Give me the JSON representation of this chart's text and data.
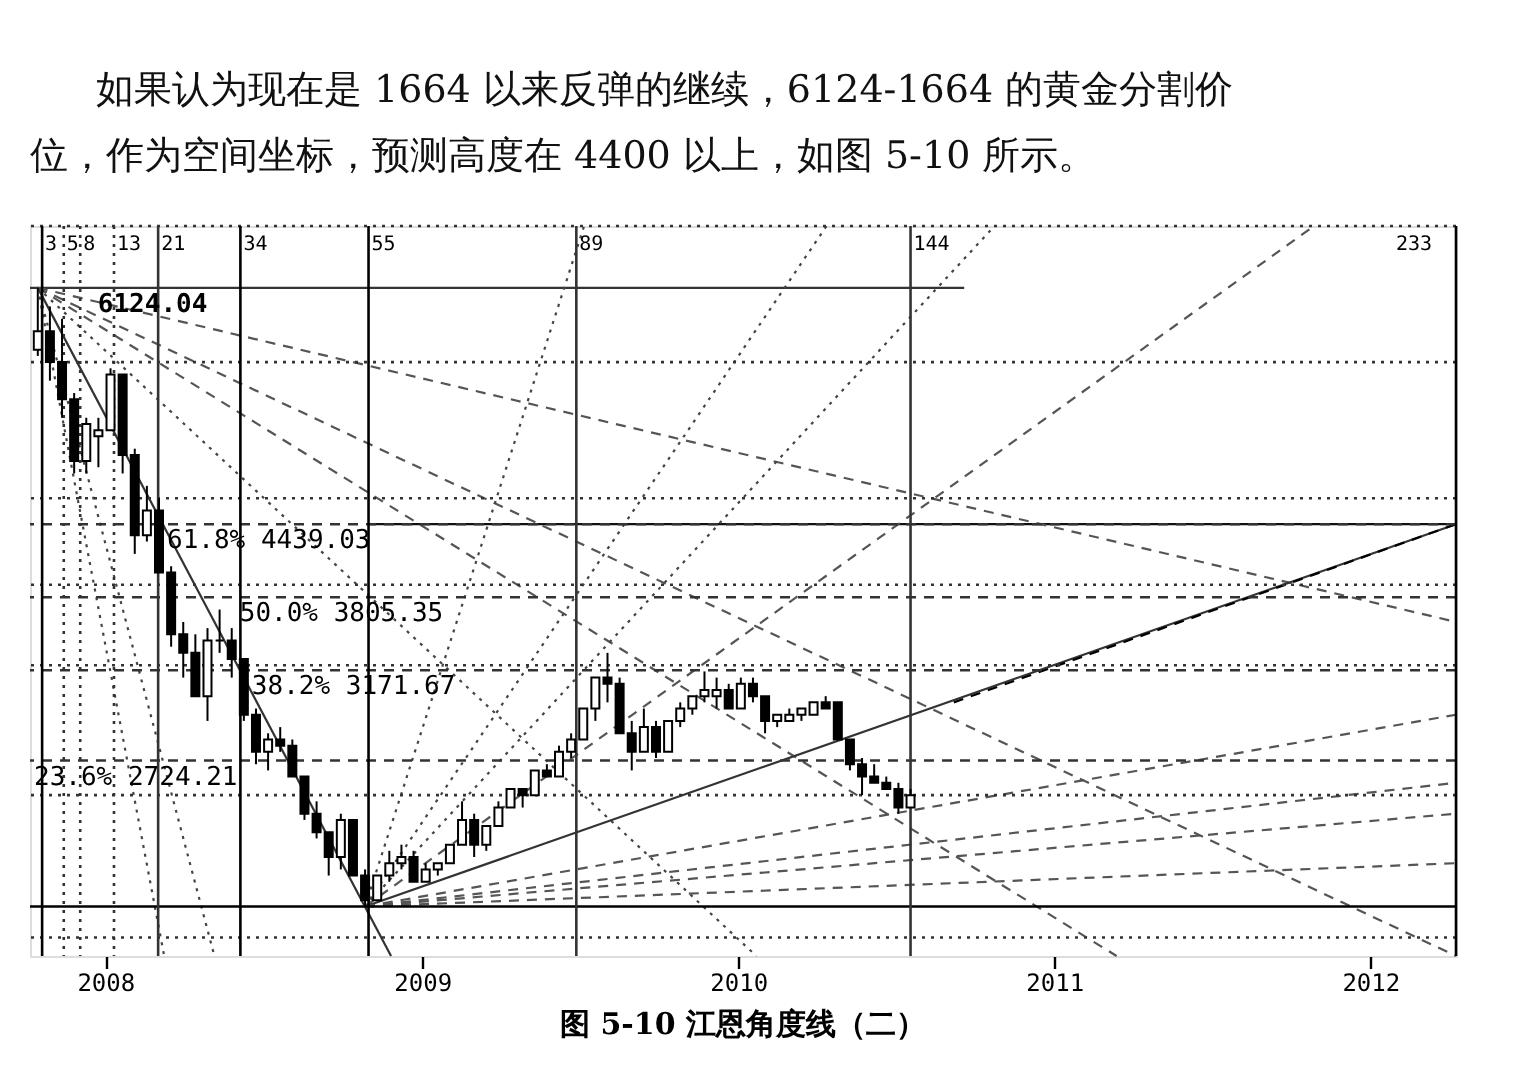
{
  "chart_data": {
    "type": "candlestick",
    "title": "图 5-10 江恩角度线（二）",
    "annotations": [
      "如果认为现在是 1664 以来反弹的继续，6124-1664 的黄金分割价",
      "位，作为空间坐标，预测高度在 4400 以上，如图 5-10 所示。",
      {
        "text": "6124.04",
        "x": "2007-10-15",
        "y": 100
      }
    ],
    "color": "#000000",
    "x": [
      "2007-10-15",
      "2007-10-29",
      "2007-11-12",
      "2007-11-26",
      "2007-12-10",
      "2007-12-24",
      "2008-01-07",
      "2008-01-21",
      "2008-02-04",
      "2008-02-18",
      "2008-03-03",
      "2008-03-17",
      "2008-03-31",
      "2008-04-14",
      "2008-04-28",
      "2008-05-12",
      "2008-05-26",
      "2008-06-09",
      "2008-06-23",
      "2008-07-07",
      "2008-07-21",
      "2008-08-04",
      "2008-08-18",
      "2008-09-01",
      "2008-09-15",
      "2008-09-29",
      "2008-10-13",
      "2008-10-27",
      "2008-11-10",
      "2008-11-24",
      "2008-12-08",
      "2008-12-22",
      "2009-01-05",
      "2009-01-19",
      "2009-02-02",
      "2009-02-16",
      "2009-03-02",
      "2009-03-16",
      "2009-03-30",
      "2009-04-13",
      "2009-04-27",
      "2009-05-11",
      "2009-05-25",
      "2009-06-08",
      "2009-06-22",
      "2009-07-06",
      "2009-07-20",
      "2009-08-03",
      "2009-08-17",
      "2009-08-31",
      "2009-09-14",
      "2009-09-28",
      "2009-10-12",
      "2009-10-26",
      "2009-11-09",
      "2009-11-23",
      "2009-12-07",
      "2009-12-21",
      "2010-01-04",
      "2010-01-18",
      "2010-02-01",
      "2010-02-15",
      "2010-03-01",
      "2010-03-15",
      "2010-03-29",
      "2010-04-12",
      "2010-04-26",
      "2010-05-10",
      "2010-05-24",
      "2010-06-07",
      "2010-06-21",
      "2010-07-05",
      "2010-07-19"
    ],
    "ohlc": [
      [
        90,
        100,
        89,
        93
      ],
      [
        93,
        97,
        85,
        88
      ],
      [
        88,
        95,
        79,
        82
      ],
      [
        82,
        83,
        70,
        72
      ],
      [
        72,
        79,
        70,
        78
      ],
      [
        76,
        79,
        71,
        77
      ],
      [
        77,
        87,
        77,
        86
      ],
      [
        86,
        86,
        70,
        73
      ],
      [
        73,
        74,
        57,
        60
      ],
      [
        60,
        68,
        59,
        64
      ],
      [
        64,
        66,
        54,
        54
      ],
      [
        54,
        55,
        42,
        44
      ],
      [
        44,
        46,
        37,
        41
      ],
      [
        41,
        44,
        34,
        34
      ],
      [
        34,
        45,
        30,
        43
      ],
      [
        43,
        48,
        41,
        43
      ],
      [
        43,
        45,
        37,
        40
      ],
      [
        40,
        40,
        30,
        31
      ],
      [
        31,
        32,
        23,
        25
      ],
      [
        25,
        28,
        22,
        27
      ],
      [
        27,
        29,
        25,
        26
      ],
      [
        26,
        27,
        21,
        21
      ],
      [
        21,
        21,
        14,
        15
      ],
      [
        15,
        17,
        11,
        12
      ],
      [
        12,
        12,
        5,
        8
      ],
      [
        8,
        15,
        6,
        14
      ],
      [
        14,
        14,
        5,
        5
      ],
      [
        5,
        6,
        0,
        1
      ],
      [
        1,
        5,
        1,
        5
      ],
      [
        5,
        9,
        4,
        7
      ],
      [
        7,
        10,
        6,
        8
      ],
      [
        8,
        9,
        4,
        4
      ],
      [
        4,
        7,
        4,
        6
      ],
      [
        6,
        7,
        5,
        7
      ],
      [
        7,
        10,
        7,
        10
      ],
      [
        10,
        17,
        10,
        14
      ],
      [
        14,
        15,
        8,
        10
      ],
      [
        10,
        13,
        9,
        13
      ],
      [
        13,
        17,
        13,
        16
      ],
      [
        16,
        19,
        16,
        19
      ],
      [
        19,
        19,
        16,
        18
      ],
      [
        18,
        22,
        18,
        22
      ],
      [
        22,
        23,
        21,
        21
      ],
      [
        21,
        26,
        21,
        25
      ],
      [
        25,
        28,
        24,
        27
      ],
      [
        27,
        32,
        27,
        32
      ],
      [
        32,
        37,
        30,
        37
      ],
      [
        37,
        41,
        33,
        36
      ],
      [
        36,
        37,
        28,
        28
      ],
      [
        28,
        30,
        22,
        25
      ],
      [
        25,
        32,
        25,
        29
      ],
      [
        29,
        30,
        24,
        25
      ],
      [
        25,
        30,
        25,
        30
      ],
      [
        30,
        33,
        29,
        32
      ],
      [
        32,
        34,
        31,
        34
      ],
      [
        34,
        38,
        33,
        35
      ],
      [
        34,
        37,
        32,
        35
      ],
      [
        35,
        36,
        32,
        32
      ],
      [
        32,
        37,
        32,
        36
      ],
      [
        36,
        37,
        33,
        34
      ],
      [
        34,
        34,
        28,
        30
      ],
      [
        30,
        31,
        29,
        31
      ],
      [
        30,
        32,
        30,
        31
      ],
      [
        31,
        32,
        30,
        32
      ],
      [
        31,
        33,
        31,
        33
      ],
      [
        33,
        34,
        32,
        32
      ],
      [
        33,
        33,
        27,
        27
      ],
      [
        27,
        27,
        22,
        23
      ],
      [
        23,
        24,
        18,
        21
      ],
      [
        21,
        23,
        20,
        20
      ],
      [
        20,
        21,
        19,
        19
      ],
      [
        19,
        20,
        15,
        16
      ],
      [
        16,
        19,
        16,
        18
      ]
    ],
    "series": [
      {
        "type": "line",
        "color": "#333333",
        "line_style": "solid",
        "x": [
          "2007-10-06",
          "2010-09-19"
        ],
        "values": [
          100,
          100
        ]
      },
      {
        "type": "line",
        "color": "#111111",
        "line_style": "solid",
        "x": [
          "2008-10-31",
          "2012-04-09"
        ],
        "values": [
          61.8,
          61.8
        ]
      },
      {
        "type": "line",
        "color": "#333333",
        "line_style": "solid",
        "x": [
          "2007-10-15",
          "2008-11-26"
        ],
        "values": [
          100,
          -8
        ]
      },
      {
        "type": "line",
        "color": "#555555",
        "line_style": "dashed",
        "x": [
          "2007-10-15",
          "2012-04-09"
        ],
        "values": [
          100,
          46
        ]
      },
      {
        "type": "line",
        "color": "#555555",
        "line_style": "dashed",
        "x": [
          "2007-10-15",
          "2012-04-09"
        ],
        "values": [
          100,
          -8
        ]
      },
      {
        "type": "line",
        "color": "#555555",
        "line_style": "dashed",
        "x": [
          "2007-10-15",
          "2011-03-14"
        ],
        "values": [
          100,
          -8
        ]
      },
      {
        "type": "line",
        "color": "#444444",
        "line_style": "dotted",
        "x": [
          "2007-10-15",
          "2010-01-22"
        ],
        "values": [
          100,
          -8
        ]
      },
      {
        "type": "line",
        "color": "#444444",
        "line_style": "dotted",
        "x": [
          "2007-10-15",
          "2008-05-06"
        ],
        "values": [
          100,
          -8
        ]
      },
      {
        "type": "line",
        "color": "#444444",
        "line_style": "dotted",
        "x": [
          "2007-10-15",
          "2008-03-09"
        ],
        "values": [
          100,
          -8
        ]
      },
      {
        "type": "line",
        "color": "#444444",
        "line_style": "dotted",
        "x": [
          "2008-10-27",
          "2009-07-07"
        ],
        "values": [
          0,
          110
        ]
      },
      {
        "type": "line",
        "color": "#444444",
        "line_style": "dotted",
        "x": [
          "2008-10-27",
          "2010-04-13"
        ],
        "values": [
          0,
          110
        ]
      },
      {
        "type": "line",
        "color": "#444444",
        "line_style": "dotted",
        "x": [
          "2008-10-27",
          "2010-10-24"
        ],
        "values": [
          0,
          110
        ]
      },
      {
        "type": "line",
        "color": "#555555",
        "line_style": "dashed",
        "x": [
          "2008-10-27",
          "2011-10-28"
        ],
        "values": [
          0,
          110
        ]
      },
      {
        "type": "line",
        "color": "#333333",
        "line_style": "solid",
        "x": [
          "2008-10-27",
          "2012-04-09"
        ],
        "values": [
          0,
          61.8
        ]
      },
      {
        "type": "line",
        "color": "#000000",
        "line_style": "dashed",
        "x": [
          "2010-09-07",
          "2012-04-09"
        ],
        "values": [
          33,
          61.8
        ]
      },
      {
        "type": "line",
        "color": "#555555",
        "line_style": "dashed",
        "x": [
          "2008-10-27",
          "2012-04-09"
        ],
        "values": [
          0,
          31
        ]
      },
      {
        "type": "line",
        "color": "#555555",
        "line_style": "dashed",
        "x": [
          "2008-10-27",
          "2012-04-09"
        ],
        "values": [
          0,
          20
        ]
      },
      {
        "type": "line",
        "color": "#555555",
        "line_style": "dashed",
        "x": [
          "2008-10-27",
          "2012-04-09"
        ],
        "values": [
          0,
          15
        ]
      },
      {
        "type": "line",
        "color": "#555555",
        "line_style": "dashed",
        "x": [
          "2008-10-27",
          "2012-04-09"
        ],
        "values": [
          0,
          7
        ]
      }
    ],
    "ref_lines": [
      {
        "axis": "y",
        "value": 61.8,
        "label": "61.8% 4439.03",
        "line_style": "dashed"
      },
      {
        "axis": "y",
        "value": 50,
        "label": "50.0% 3805.35",
        "line_style": "dashed"
      },
      {
        "axis": "y",
        "value": 38.2,
        "label": "38.2% 3171.67",
        "line_style": "dashed"
      },
      {
        "axis": "y",
        "value": 23.6,
        "label": "23.6% 2724.21",
        "line_style": "dashed"
      },
      {
        "axis": "y",
        "value": 0,
        "line_style": "solid",
        "color": "#000000"
      },
      {
        "axis": "y",
        "value": 110,
        "line_style": "dotted"
      },
      {
        "axis": "y",
        "value": 88,
        "line_style": "dotted"
      },
      {
        "axis": "y",
        "value": 66,
        "line_style": "dotted"
      },
      {
        "axis": "y",
        "value": 52,
        "line_style": "dotted"
      },
      {
        "axis": "y",
        "value": 39,
        "line_style": "dotted"
      },
      {
        "axis": "y",
        "value": 18,
        "line_style": "dotted"
      },
      {
        "axis": "y",
        "value": -5,
        "line_style": "dotted"
      },
      {
        "axis": "x",
        "value": "2007-10-20",
        "label": "3",
        "line_style": "solid",
        "color": "#000000"
      },
      {
        "axis": "x",
        "value": "2007-11-14",
        "label": "5",
        "line_style": "dotted"
      },
      {
        "axis": "x",
        "value": "2007-12-03",
        "label": "8",
        "line_style": "dotted"
      },
      {
        "axis": "x",
        "value": "2008-01-11",
        "label": "13",
        "line_style": "dotted"
      },
      {
        "axis": "x",
        "value": "2008-03-02",
        "label": "21",
        "line_style": "solid"
      },
      {
        "axis": "x",
        "value": "2008-06-05",
        "label": "34",
        "line_style": "solid",
        "color": "#000000"
      },
      {
        "axis": "x",
        "value": "2008-10-31",
        "label": "55",
        "line_style": "solid",
        "color": "#000000"
      },
      {
        "axis": "x",
        "value": "2009-06-28",
        "label": "89",
        "line_style": "solid"
      },
      {
        "axis": "x",
        "value": "2010-07-19",
        "label": "144",
        "line_style": "solid"
      },
      {
        "axis": "x",
        "value": "2012-04-09",
        "label": "233",
        "line_style": "solid",
        "color": "#000000"
      }
    ],
    "xlim": [
      "2007-10-06",
      "2012-04-09"
    ],
    "ylim": [
      -8,
      110
    ],
    "xticks": [
      "2008",
      "2009",
      "2010",
      "2011",
      "2012"
    ],
    "tick_labels": "x"
  }
}
